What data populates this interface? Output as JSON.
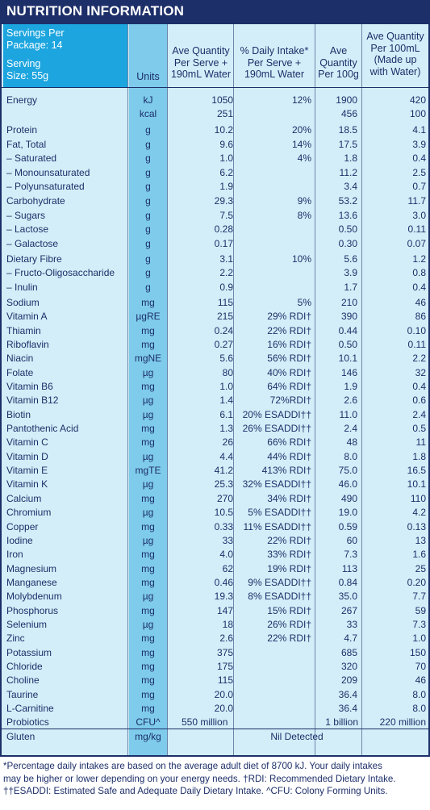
{
  "title": "NUTRITION INFORMATION",
  "header": {
    "servings_line1": "Servings Per",
    "servings_line2": "Package: 14",
    "serving_line1": "Serving",
    "serving_line2": "Size: 55g",
    "units": "Units",
    "per_serve": [
      "Ave Quantity",
      "Per Serve +",
      "190mL Water"
    ],
    "daily_intake": [
      "% Daily Intake*",
      "Per Serve +",
      "190mL Water"
    ],
    "per_100g": [
      "Ave",
      "Quantity",
      "Per 100g"
    ],
    "per_100ml": [
      "Ave Quantity",
      "Per 100mL",
      "(Made up",
      "with Water)"
    ]
  },
  "rows": [
    {
      "name": "Energy",
      "unit": "kJ",
      "serve": "1050",
      "di": "12%",
      "g100": "1900",
      "ml100": "420"
    },
    {
      "name": "",
      "unit": "kcal",
      "serve": "251",
      "di": "",
      "g100": "456",
      "ml100": "100"
    },
    {
      "name": "Protein",
      "unit": "g",
      "serve": "10.2",
      "di": "20%",
      "g100": "18.5",
      "ml100": "4.1"
    },
    {
      "name": "Fat, Total",
      "unit": "g",
      "serve": "9.6",
      "di": "14%",
      "g100": "17.5",
      "ml100": "3.9"
    },
    {
      "name": "– Saturated",
      "unit": "g",
      "serve": "1.0",
      "di": "4%",
      "g100": "1.8",
      "ml100": "0.4"
    },
    {
      "name": "– Monounsaturated",
      "unit": "g",
      "serve": "6.2",
      "di": "",
      "g100": "11.2",
      "ml100": "2.5"
    },
    {
      "name": "– Polyunsaturated",
      "unit": "g",
      "serve": "1.9",
      "di": "",
      "g100": "3.4",
      "ml100": "0.7"
    },
    {
      "name": "Carbohydrate",
      "unit": "g",
      "serve": "29.3",
      "di": "9%",
      "g100": "53.2",
      "ml100": "11.7"
    },
    {
      "name": "– Sugars",
      "unit": "g",
      "serve": "7.5",
      "di": "8%",
      "g100": "13.6",
      "ml100": "3.0"
    },
    {
      "name": "– Lactose",
      "unit": "g",
      "serve": "0.28",
      "di": "",
      "g100": "0.50",
      "ml100": "0.11"
    },
    {
      "name": "– Galactose",
      "unit": "g",
      "serve": "0.17",
      "di": "",
      "g100": "0.30",
      "ml100": "0.07"
    },
    {
      "name": "Dietary Fibre",
      "unit": "g",
      "serve": "3.1",
      "di": "10%",
      "g100": "5.6",
      "ml100": "1.2"
    },
    {
      "name": "– Fructo-Oligosaccharide",
      "unit": "g",
      "serve": "2.2",
      "di": "",
      "g100": "3.9",
      "ml100": "0.8"
    },
    {
      "name": "– Inulin",
      "unit": "g",
      "serve": "0.9",
      "di": "",
      "g100": "1.7",
      "ml100": "0.4"
    },
    {
      "name": "Sodium",
      "unit": "mg",
      "serve": "115",
      "di": "5%",
      "g100": "210",
      "ml100": "46"
    },
    {
      "name": "Vitamin A",
      "unit": "µgRE",
      "serve": "215",
      "di": "29% RDI†",
      "g100": "390",
      "ml100": "86"
    },
    {
      "name": "Thiamin",
      "unit": "mg",
      "serve": "0.24",
      "di": "22% RDI†",
      "g100": "0.44",
      "ml100": "0.10"
    },
    {
      "name": "Riboflavin",
      "unit": "mg",
      "serve": "0.27",
      "di": "16% RDI†",
      "g100": "0.50",
      "ml100": "0.11"
    },
    {
      "name": "Niacin",
      "unit": "mgNE",
      "serve": "5.6",
      "di": "56% RDI†",
      "g100": "10.1",
      "ml100": "2.2"
    },
    {
      "name": "Folate",
      "unit": "µg",
      "serve": "80",
      "di": "40% RDI†",
      "g100": "146",
      "ml100": "32"
    },
    {
      "name": "Vitamin B6",
      "unit": "mg",
      "serve": "1.0",
      "di": "64% RDI†",
      "g100": "1.9",
      "ml100": "0.4"
    },
    {
      "name": "Vitamin B12",
      "unit": "µg",
      "serve": "1.4",
      "di": "72%RDI†",
      "g100": "2.6",
      "ml100": "0.6"
    },
    {
      "name": "Biotin",
      "unit": "µg",
      "serve": "6.1",
      "di": "20% ESADDI††",
      "g100": "11.0",
      "ml100": "2.4"
    },
    {
      "name": "Pantothenic Acid",
      "unit": "mg",
      "serve": "1.3",
      "di": "26% ESADDI††",
      "g100": "2.4",
      "ml100": "0.5"
    },
    {
      "name": "Vitamin C",
      "unit": "mg",
      "serve": "26",
      "di": "66% RDI†",
      "g100": "48",
      "ml100": "11"
    },
    {
      "name": "Vitamin D",
      "unit": "µg",
      "serve": "4.4",
      "di": "44% RDI†",
      "g100": "8.0",
      "ml100": "1.8"
    },
    {
      "name": "Vitamin E",
      "unit": "mgTE",
      "serve": "41.2",
      "di": "413% RDI†",
      "g100": "75.0",
      "ml100": "16.5"
    },
    {
      "name": "Vitamin K",
      "unit": "µg",
      "serve": "25.3",
      "di": "32% ESADDI††",
      "g100": "46.0",
      "ml100": "10.1"
    },
    {
      "name": "Calcium",
      "unit": "mg",
      "serve": "270",
      "di": "34% RDI†",
      "g100": "490",
      "ml100": "110"
    },
    {
      "name": "Chromium",
      "unit": "µg",
      "serve": "10.5",
      "di": "5% ESADDI††",
      "g100": "19.0",
      "ml100": "4.2"
    },
    {
      "name": "Copper",
      "unit": "mg",
      "serve": "0.33",
      "di": "11% ESADDI††",
      "g100": "0.59",
      "ml100": "0.13"
    },
    {
      "name": "Iodine",
      "unit": "µg",
      "serve": "33",
      "di": "22% RDI†",
      "g100": "60",
      "ml100": "13"
    },
    {
      "name": "Iron",
      "unit": "mg",
      "serve": "4.0",
      "di": "33% RDI†",
      "g100": "7.3",
      "ml100": "1.6"
    },
    {
      "name": "Magnesium",
      "unit": "mg",
      "serve": "62",
      "di": "19% RDI†",
      "g100": "113",
      "ml100": "25"
    },
    {
      "name": "Manganese",
      "unit": "mg",
      "serve": "0.46",
      "di": "9% ESADDI††",
      "g100": "0.84",
      "ml100": "0.20"
    },
    {
      "name": "Molybdenum",
      "unit": "µg",
      "serve": "19.3",
      "di": "8% ESADDI††",
      "g100": "35.0",
      "ml100": "7.7"
    },
    {
      "name": "Phosphorus",
      "unit": "mg",
      "serve": "147",
      "di": "15% RDI†",
      "g100": "267",
      "ml100": "59"
    },
    {
      "name": "Selenium",
      "unit": "µg",
      "serve": "18",
      "di": "26% RDI†",
      "g100": "33",
      "ml100": "7.3"
    },
    {
      "name": "Zinc",
      "unit": "mg",
      "serve": "2.6",
      "di": "22% RDI†",
      "g100": "4.7",
      "ml100": "1.0"
    },
    {
      "name": "Potassium",
      "unit": "mg",
      "serve": "375",
      "di": "",
      "g100": "685",
      "ml100": "150"
    },
    {
      "name": "Chloride",
      "unit": "mg",
      "serve": "175",
      "di": "",
      "g100": "320",
      "ml100": "70"
    },
    {
      "name": "Choline",
      "unit": "mg",
      "serve": "115",
      "di": "",
      "g100": "209",
      "ml100": "46"
    },
    {
      "name": "Taurine",
      "unit": "mg",
      "serve": "20.0",
      "di": "",
      "g100": "36.4",
      "ml100": "8.0"
    },
    {
      "name": "L-Carnitine",
      "unit": "mg",
      "serve": "20.0",
      "di": "",
      "g100": "36.4",
      "ml100": "8.0"
    },
    {
      "name": "Probiotics",
      "unit": "CFU^",
      "serve": "550 million",
      "di": "",
      "g100": "1 billion",
      "ml100": "220 million"
    },
    {
      "name": "Gluten",
      "unit": "mg/kg",
      "serve": "",
      "di": "",
      "g100": "",
      "ml100": "",
      "span": "Nil Detected"
    }
  ],
  "footnotes": [
    "*Percentage daily intakes are based on the average adult diet of 8700 kJ. Your daily intakes",
    "may be higher or lower depending on your energy needs. †RDI: Recommended Dietary Intake.",
    "††ESADDI: Estimated Safe and Adequate Daily Dietary Intake. ^CFU: Colony Forming Units."
  ]
}
